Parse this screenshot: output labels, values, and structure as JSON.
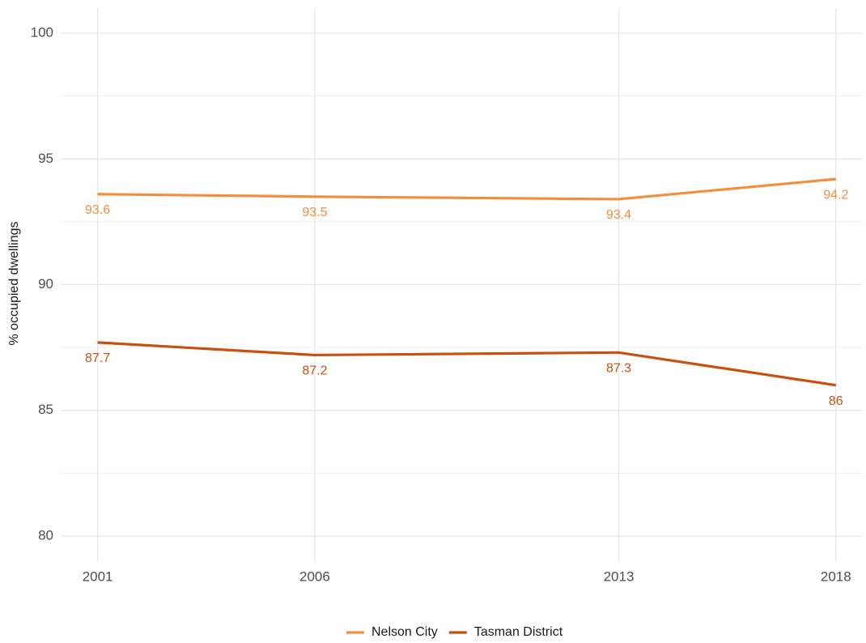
{
  "chart_data": {
    "type": "line",
    "y_label": "% occupied dwellings",
    "x": [
      2001,
      2006,
      2013,
      2018
    ],
    "series": [
      {
        "name": "Nelson City",
        "color": "#f28e3c",
        "values": [
          93.6,
          93.5,
          93.4,
          94.2
        ]
      },
      {
        "name": "Tasman District",
        "color": "#c9500f",
        "values": [
          87.7,
          87.2,
          87.3,
          86
        ]
      }
    ],
    "xlim": [
      2000.15,
      2018.6
    ],
    "xticks": [
      2001,
      2006,
      2013,
      2018
    ],
    "ylim": [
      79,
      101
    ],
    "yticks": [
      80,
      85,
      90,
      95,
      100
    ],
    "yminor": [
      82.5,
      87.5,
      92.5,
      97.5
    ],
    "grid": true,
    "legend": "bottom"
  }
}
